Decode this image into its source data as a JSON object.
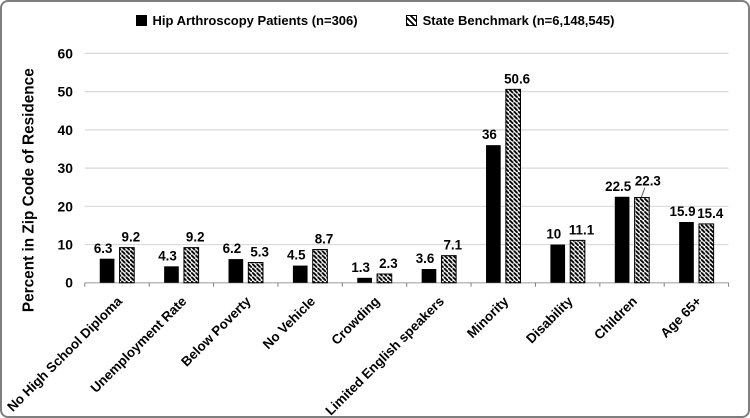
{
  "legend": {
    "items": [
      {
        "label": "Hip Arthroscopy Patients (n=306)",
        "swatch": "solid-black-square"
      },
      {
        "label": "State Benchmark (n=6,148,545)",
        "swatch": "diagonal-hatch-square"
      }
    ]
  },
  "chart_data": {
    "type": "bar",
    "title": "",
    "ylabel": "Percent in Zip Code of Residence",
    "xlabel": "",
    "ylim": [
      0,
      60
    ],
    "yticks": [
      0,
      10,
      20,
      30,
      40,
      50,
      60
    ],
    "grid": "horizontal-gridlines",
    "legend_position": "top-center",
    "x_tick_label_rotation_deg": 45,
    "data_labels": "above-bars",
    "categories": [
      "No High School Diploma",
      "Unemployment Rate",
      "Below Poverty",
      "No Vehicle",
      "Crowding",
      "Limited English speakers",
      "Minority",
      "Disability",
      "Children",
      "Age 65+"
    ],
    "series": [
      {
        "name": "Hip Arthroscopy Patients (n=306)",
        "style": "solid-black",
        "values": [
          6.3,
          4.3,
          6.2,
          4.5,
          1.3,
          3.6,
          36,
          10,
          22.5,
          15.9
        ]
      },
      {
        "name": "State Benchmark (n=6,148,545)",
        "style": "black-diagonal-hatch",
        "values": [
          9.2,
          9.2,
          5.3,
          8.7,
          2.3,
          7.1,
          50.6,
          11.1,
          22.3,
          15.4
        ]
      }
    ],
    "callout": {
      "series_index": 1,
      "category_index": 8,
      "note": "22.3 label raised with leader line"
    }
  },
  "colors": {
    "bar": "#000000",
    "gridline": "#d9d9d9",
    "axis_line": "#a6a6a6",
    "tick": "#7f7f7f",
    "leader_line": "#595959",
    "figure_border": "#7f7f7f",
    "text": "#000000",
    "background": "#ffffff"
  }
}
